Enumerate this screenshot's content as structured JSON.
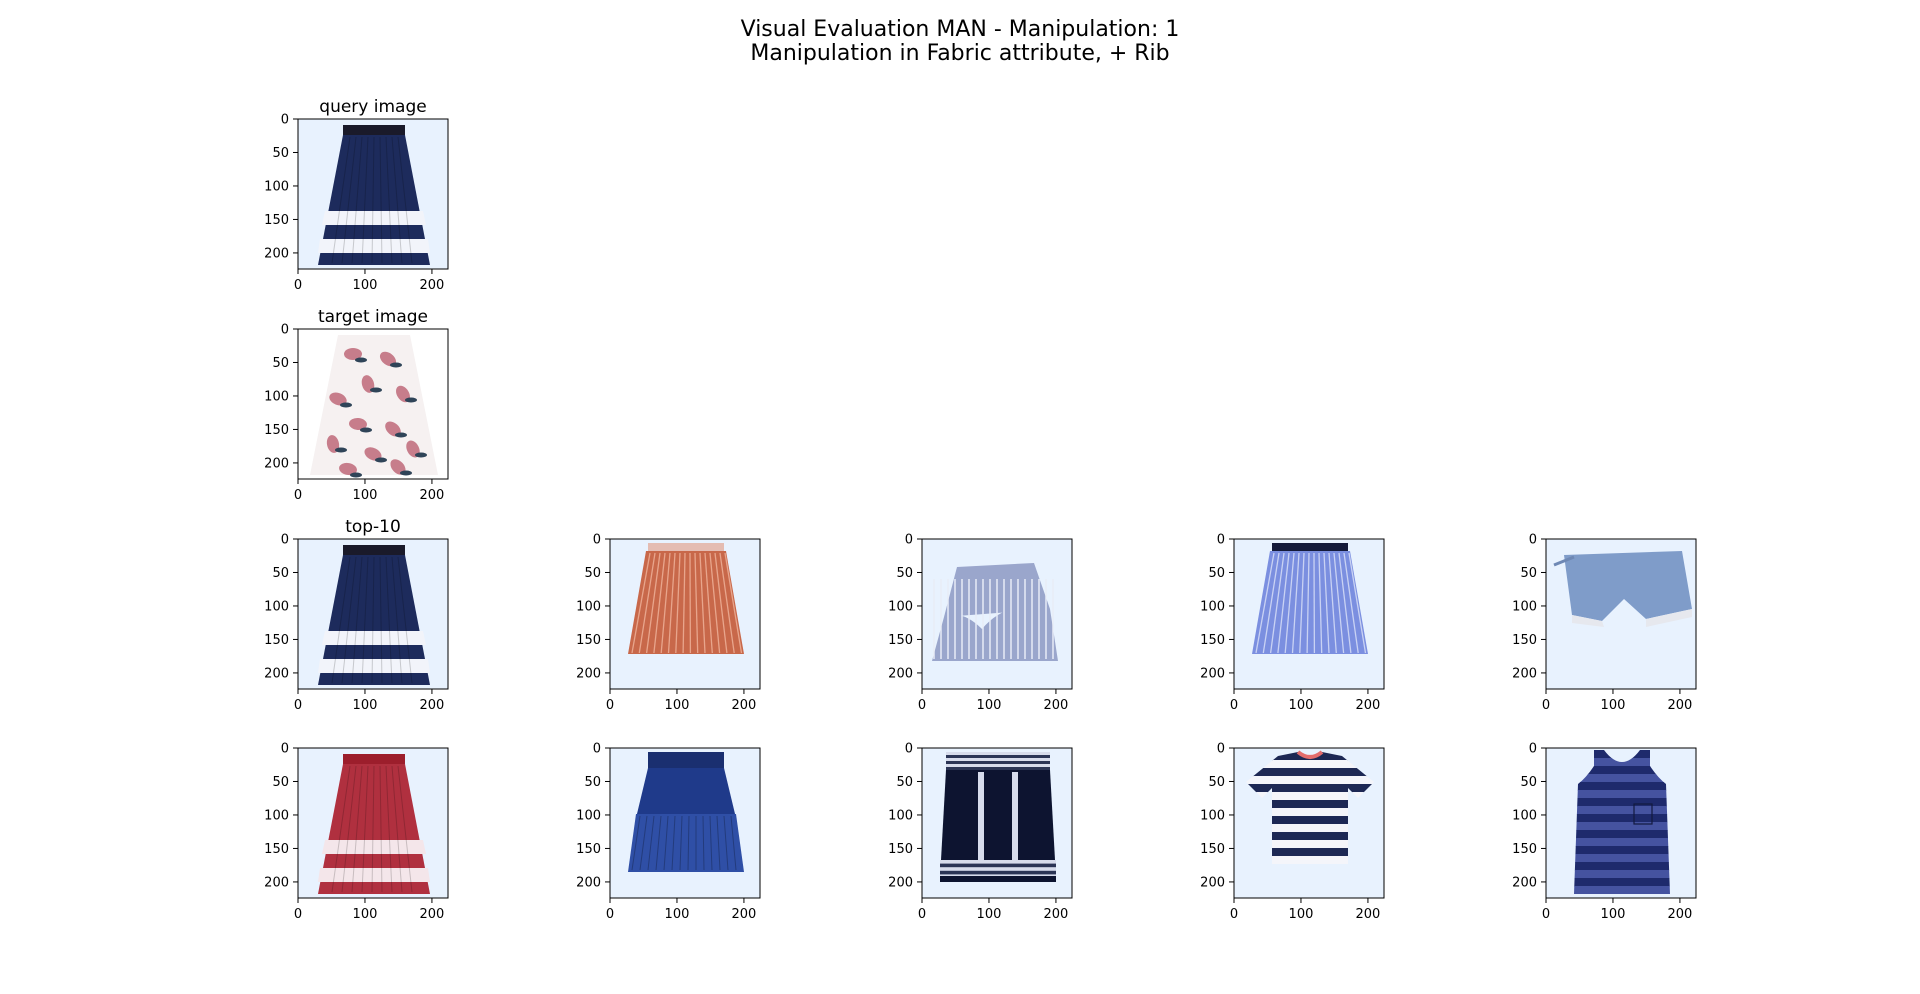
{
  "figure": {
    "title_line1": "Visual Evaluation MAN - Manipulation: 1",
    "title_line2": "Manipulation in Fabric attribute, + Rib"
  },
  "chart_data": {
    "type": "image_grid",
    "axes_common": {
      "xticks": [
        0,
        100,
        200
      ],
      "yticks": [
        0,
        50,
        100,
        150,
        200
      ],
      "xlim": [
        0,
        224
      ],
      "ylim": [
        224,
        0
      ]
    },
    "panels": [
      {
        "row": 0,
        "col": 0,
        "title": "query image",
        "image": "navy pleated skirt with white stripes",
        "bg": "#e8f2fe",
        "garment": "skirt-stripes",
        "c1": "#1d2b5c",
        "c2": "#f2f4fa",
        "band": "#1a1a2a"
      },
      {
        "row": 1,
        "col": 0,
        "title": "target image",
        "image": "white skirt with pink floral print",
        "bg": "#ffffff",
        "garment": "skirt-floral",
        "c1": "#f6f1f1",
        "c2": "#c77d8b",
        "band": "#2f4458"
      },
      {
        "row": 2,
        "col": 0,
        "title": "top-10",
        "image": "navy pleated skirt with white stripes",
        "bg": "#e8f2fe",
        "garment": "skirt-stripes",
        "c1": "#1d2b5c",
        "c2": "#f2f4fa",
        "band": "#1a1a2a"
      },
      {
        "row": 2,
        "col": 1,
        "title": "",
        "image": "rust pleated mini skirt",
        "bg": "#e8f2fe",
        "garment": "skirt-pleat",
        "c1": "#c8684a",
        "c2": "#e8a58c",
        "band": "#e4bcb2"
      },
      {
        "row": 2,
        "col": 2,
        "title": "",
        "image": "blue striped ruffle skirt",
        "bg": "#e8f2fe",
        "garment": "skirt-ruffle",
        "c1": "#9aa6cc",
        "c2": "#e8ecf6",
        "band": "#8d98bd"
      },
      {
        "row": 2,
        "col": 3,
        "title": "",
        "image": "blue striped wrap skirt",
        "bg": "#e8f2fe",
        "garment": "skirt-pleat",
        "c1": "#7b8fe0",
        "c2": "#c9d2f3",
        "band": "#141a3a"
      },
      {
        "row": 2,
        "col": 4,
        "title": "",
        "image": "denim shorts with lace hem",
        "bg": "#e8f2fe",
        "garment": "shorts",
        "c1": "#7f9cc9",
        "c2": "#e6e8ee",
        "band": "#6e88b4"
      },
      {
        "row": 3,
        "col": 0,
        "title": "",
        "image": "red and white striped skirt",
        "bg": "#e8f2fe",
        "garment": "skirt-stripes",
        "c1": "#b0303f",
        "c2": "#f4e6ea",
        "band": "#9c1e2c"
      },
      {
        "row": 3,
        "col": 1,
        "title": "",
        "image": "navy tiered mini skirt",
        "bg": "#e8f2fe",
        "garment": "skirt-tiered",
        "c1": "#1f3a8a",
        "c2": "#2f4fa6",
        "band": "#1a2f70"
      },
      {
        "row": 3,
        "col": 2,
        "title": "",
        "image": "navy knit mini skirt with white trim",
        "bg": "#e8f2fe",
        "garment": "skirt-knit",
        "c1": "#0d1430",
        "c2": "#d7dcec",
        "band": "#2b3556"
      },
      {
        "row": 3,
        "col": 3,
        "title": "",
        "image": "navy and white striped t-shirt",
        "bg": "#e8f2fe",
        "garment": "tshirt",
        "c1": "#1d2854",
        "c2": "#f4f5fa",
        "band": "#e36c6c"
      },
      {
        "row": 3,
        "col": 4,
        "title": "",
        "image": "navy striped tank top",
        "bg": "#e8f2fe",
        "garment": "tank",
        "c1": "#1e2a6c",
        "c2": "#4553a0",
        "band": "#1e2a6c"
      }
    ]
  }
}
